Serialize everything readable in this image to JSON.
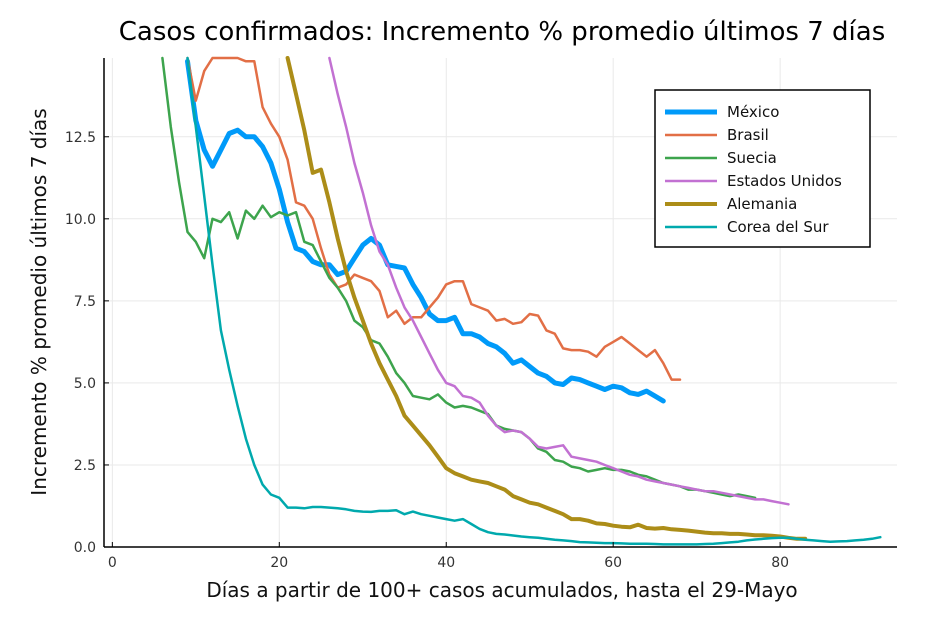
{
  "chart_data": {
    "type": "line",
    "title": "Casos confirmados: Incremento % promedio últimos 7 días",
    "xlabel": "Días a partir de 100+ casos acumulados, hasta el 29-Mayo",
    "ylabel": "Incremento % promedio últimos 7 días",
    "xlim": [
      -1,
      94
    ],
    "ylim": [
      0,
      14.9
    ],
    "xticks": [
      0,
      20,
      40,
      60,
      80
    ],
    "xtick_labels": [
      "0",
      "20",
      "40",
      "60",
      "80"
    ],
    "yticks": [
      0,
      2.5,
      5,
      7.5,
      10,
      12.5
    ],
    "ytick_labels": [
      "0.0",
      "2.5",
      "5.0",
      "7.5",
      "10.0",
      "12.5"
    ],
    "grid": true,
    "legend_position": "top-right",
    "series": [
      {
        "name": "México",
        "color": "#009af9",
        "width": 5,
        "x": [
          9,
          10,
          11,
          12,
          13,
          14,
          15,
          16,
          17,
          18,
          19,
          20,
          21,
          22,
          23,
          24,
          25,
          26,
          27,
          28,
          29,
          30,
          31,
          32,
          33,
          34,
          35,
          36,
          37,
          38,
          39,
          40,
          41,
          42,
          43,
          44,
          45,
          46,
          47,
          48,
          49,
          50,
          51,
          52,
          53,
          54,
          55,
          56,
          57,
          58,
          59,
          60,
          61,
          62,
          63,
          64,
          65,
          66
        ],
        "y": [
          14.8,
          13.0,
          12.1,
          11.6,
          12.1,
          12.6,
          12.7,
          12.5,
          12.5,
          12.2,
          11.7,
          10.9,
          9.9,
          9.1,
          9.0,
          8.7,
          8.6,
          8.6,
          8.3,
          8.4,
          8.8,
          9.2,
          9.4,
          9.2,
          8.6,
          8.55,
          8.5,
          8.0,
          7.6,
          7.1,
          6.9,
          6.9,
          7.0,
          6.5,
          6.5,
          6.4,
          6.2,
          6.1,
          5.9,
          5.6,
          5.7,
          5.5,
          5.3,
          5.2,
          5.0,
          4.95,
          5.15,
          5.1,
          5.0,
          4.9,
          4.8,
          4.9,
          4.85,
          4.7,
          4.65,
          4.75,
          4.6,
          4.45
        ]
      },
      {
        "name": "Brasil",
        "color": "#e26f46",
        "width": 2.5,
        "x": [
          9,
          10,
          11,
          12,
          13,
          14,
          15,
          16,
          17,
          18,
          19,
          20,
          21,
          22,
          23,
          24,
          25,
          26,
          27,
          28,
          29,
          30,
          31,
          32,
          33,
          34,
          35,
          36,
          37,
          38,
          39,
          40,
          41,
          42,
          43,
          44,
          45,
          46,
          47,
          48,
          49,
          50,
          51,
          52,
          53,
          54,
          55,
          56,
          57,
          58,
          59,
          60,
          61,
          62,
          63,
          64,
          65,
          66,
          67,
          68
        ],
        "y": [
          14.9,
          13.6,
          14.5,
          14.9,
          14.9,
          14.9,
          14.9,
          14.8,
          14.8,
          13.4,
          12.9,
          12.5,
          11.8,
          10.5,
          10.4,
          10.0,
          9.1,
          8.3,
          7.9,
          8.0,
          8.3,
          8.2,
          8.1,
          7.8,
          7.0,
          7.2,
          6.8,
          7.0,
          7.0,
          7.3,
          7.6,
          8.0,
          8.1,
          8.1,
          7.4,
          7.3,
          7.2,
          6.9,
          6.95,
          6.8,
          6.85,
          7.1,
          7.05,
          6.6,
          6.5,
          6.05,
          6.0,
          6.0,
          5.95,
          5.8,
          6.1,
          6.25,
          6.4,
          6.2,
          6.0,
          5.8,
          6.0,
          5.6,
          5.1,
          5.1
        ]
      },
      {
        "name": "Suecia",
        "color": "#3da44d",
        "width": 2.5,
        "x": [
          6,
          7,
          8,
          9,
          10,
          11,
          12,
          13,
          14,
          15,
          16,
          17,
          18,
          19,
          20,
          21,
          22,
          23,
          24,
          25,
          26,
          27,
          28,
          29,
          30,
          31,
          32,
          33,
          34,
          35,
          36,
          37,
          38,
          39,
          40,
          41,
          42,
          43,
          44,
          45,
          46,
          47,
          48,
          49,
          50,
          51,
          52,
          53,
          54,
          55,
          56,
          57,
          58,
          59,
          60,
          61,
          62,
          63,
          64,
          65,
          66,
          67,
          68,
          69,
          70,
          71,
          72,
          73,
          74,
          75,
          76,
          77
        ],
        "y": [
          14.9,
          12.8,
          11.1,
          9.6,
          9.3,
          8.8,
          10.0,
          9.9,
          10.2,
          9.4,
          10.25,
          10.0,
          10.4,
          10.05,
          10.2,
          10.1,
          10.2,
          9.3,
          9.2,
          8.7,
          8.2,
          7.9,
          7.5,
          6.9,
          6.7,
          6.3,
          6.2,
          5.8,
          5.3,
          5.0,
          4.6,
          4.55,
          4.5,
          4.65,
          4.4,
          4.25,
          4.3,
          4.25,
          4.15,
          4.05,
          3.7,
          3.6,
          3.55,
          3.5,
          3.3,
          3.0,
          2.9,
          2.65,
          2.6,
          2.45,
          2.4,
          2.3,
          2.35,
          2.4,
          2.35,
          2.35,
          2.3,
          2.2,
          2.15,
          2.05,
          1.95,
          1.9,
          1.85,
          1.75,
          1.75,
          1.7,
          1.65,
          1.6,
          1.55,
          1.6,
          1.55,
          1.5
        ]
      },
      {
        "name": "Estados Unidos",
        "color": "#c271d2",
        "width": 2.5,
        "x": [
          26,
          27,
          28,
          29,
          30,
          31,
          32,
          33,
          34,
          35,
          36,
          37,
          38,
          39,
          40,
          41,
          42,
          43,
          44,
          45,
          46,
          47,
          48,
          49,
          50,
          51,
          52,
          53,
          54,
          55,
          56,
          57,
          58,
          59,
          60,
          61,
          62,
          63,
          64,
          65,
          66,
          67,
          68,
          69,
          70,
          71,
          72,
          73,
          74,
          75,
          76,
          77,
          78,
          79,
          80,
          81
        ],
        "y": [
          14.9,
          13.8,
          12.8,
          11.7,
          10.8,
          9.8,
          9.0,
          8.6,
          7.9,
          7.3,
          6.9,
          6.4,
          5.9,
          5.4,
          5.0,
          4.9,
          4.6,
          4.55,
          4.4,
          4.0,
          3.7,
          3.5,
          3.55,
          3.5,
          3.3,
          3.05,
          3.0,
          3.05,
          3.1,
          2.75,
          2.7,
          2.65,
          2.6,
          2.5,
          2.4,
          2.3,
          2.2,
          2.15,
          2.05,
          2.0,
          1.95,
          1.9,
          1.85,
          1.8,
          1.75,
          1.7,
          1.7,
          1.65,
          1.6,
          1.55,
          1.5,
          1.45,
          1.45,
          1.4,
          1.35,
          1.3
        ]
      },
      {
        "name": "Alemania",
        "color": "#ac8d18",
        "width": 4,
        "x": [
          21,
          22,
          23,
          24,
          25,
          26,
          27,
          28,
          29,
          30,
          31,
          32,
          33,
          34,
          35,
          36,
          37,
          38,
          39,
          40,
          41,
          42,
          43,
          44,
          45,
          46,
          47,
          48,
          49,
          50,
          51,
          52,
          53,
          54,
          55,
          56,
          57,
          58,
          59,
          60,
          61,
          62,
          63,
          64,
          65,
          66,
          67,
          68,
          69,
          70,
          71,
          72,
          73,
          74,
          75,
          76,
          77,
          78,
          79,
          80,
          81,
          82,
          83
        ],
        "y": [
          14.9,
          13.8,
          12.7,
          11.4,
          11.5,
          10.5,
          9.4,
          8.4,
          7.6,
          6.9,
          6.2,
          5.6,
          5.1,
          4.6,
          4.0,
          3.7,
          3.4,
          3.1,
          2.75,
          2.4,
          2.25,
          2.15,
          2.05,
          2.0,
          1.95,
          1.85,
          1.75,
          1.55,
          1.45,
          1.35,
          1.3,
          1.2,
          1.1,
          1.0,
          0.85,
          0.85,
          0.8,
          0.72,
          0.7,
          0.65,
          0.62,
          0.6,
          0.68,
          0.58,
          0.56,
          0.58,
          0.54,
          0.52,
          0.5,
          0.47,
          0.44,
          0.42,
          0.42,
          0.4,
          0.4,
          0.38,
          0.36,
          0.36,
          0.34,
          0.32,
          0.28,
          0.25,
          0.25
        ]
      },
      {
        "name": "Corea del Sur",
        "color": "#00a9ad",
        "width": 2.5,
        "x": [
          9,
          10,
          11,
          12,
          13,
          14,
          15,
          16,
          17,
          18,
          19,
          20,
          21,
          22,
          23,
          24,
          25,
          26,
          27,
          28,
          29,
          30,
          31,
          32,
          33,
          34,
          35,
          36,
          37,
          38,
          39,
          40,
          41,
          42,
          43,
          44,
          45,
          46,
          47,
          48,
          49,
          50,
          51,
          52,
          53,
          54,
          55,
          56,
          57,
          58,
          59,
          60,
          61,
          62,
          63,
          64,
          65,
          66,
          67,
          68,
          69,
          70,
          71,
          72,
          73,
          74,
          75,
          76,
          77,
          78,
          79,
          80,
          81,
          82,
          83,
          84,
          85,
          86,
          87,
          88,
          89,
          90,
          91,
          92
        ],
        "y": [
          14.9,
          12.8,
          10.7,
          8.6,
          6.6,
          5.4,
          4.3,
          3.3,
          2.5,
          1.9,
          1.6,
          1.5,
          1.2,
          1.2,
          1.18,
          1.22,
          1.22,
          1.2,
          1.18,
          1.15,
          1.1,
          1.08,
          1.07,
          1.1,
          1.1,
          1.12,
          1.0,
          1.08,
          1.0,
          0.95,
          0.9,
          0.85,
          0.8,
          0.85,
          0.7,
          0.55,
          0.45,
          0.4,
          0.38,
          0.35,
          0.32,
          0.3,
          0.28,
          0.25,
          0.22,
          0.2,
          0.18,
          0.15,
          0.14,
          0.13,
          0.12,
          0.12,
          0.11,
          0.1,
          0.1,
          0.1,
          0.09,
          0.08,
          0.08,
          0.08,
          0.08,
          0.08,
          0.09,
          0.1,
          0.12,
          0.14,
          0.16,
          0.2,
          0.23,
          0.25,
          0.27,
          0.28,
          0.28,
          0.25,
          0.22,
          0.2,
          0.18,
          0.16,
          0.17,
          0.18,
          0.2,
          0.22,
          0.25,
          0.3
        ]
      }
    ]
  }
}
